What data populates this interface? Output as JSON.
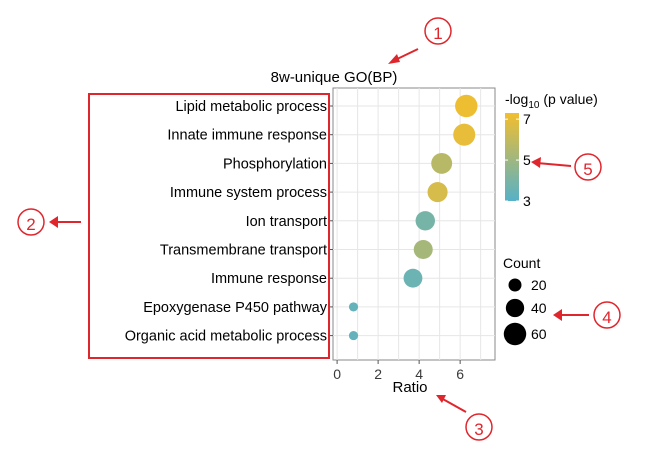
{
  "chart_data": {
    "type": "scatter",
    "title": "8w-unique GO(BP)",
    "xlabel": "Ratio",
    "ylabel": "",
    "xlim": [
      -0.2,
      7.7
    ],
    "xticks": [
      0,
      2,
      4,
      6
    ],
    "grid": true,
    "categories": [
      "Lipid metabolic process",
      "Innate immune response",
      "Phosphorylation",
      "Immune system process",
      "Ion transport",
      "Transmembrane transport",
      "Immune response",
      "Epoxygenase P450 pathway",
      "Organic acid metabolic process"
    ],
    "ratio": [
      6.3,
      6.2,
      5.1,
      4.9,
      4.3,
      4.2,
      3.7,
      0.8,
      0.8
    ],
    "count": [
      60,
      58,
      52,
      48,
      45,
      43,
      42,
      10,
      10
    ],
    "neg_log10_p": [
      7.2,
      7.0,
      5.7,
      6.5,
      3.9,
      5.2,
      3.6,
      3.4,
      3.4
    ],
    "color_legend": {
      "title_prefix": "-log",
      "title_sub": "10",
      "title_suffix": " (p value)",
      "ticks": [
        7,
        5,
        3
      ],
      "range": [
        3,
        7.3
      ],
      "low_color": "#56B1C8",
      "high_color": "#F2BE2E"
    },
    "size_legend": {
      "title": "Count",
      "values": [
        20,
        40,
        60
      ]
    }
  },
  "annotations": {
    "callouts": [
      "①",
      "②",
      "③",
      "④",
      "⑤"
    ],
    "callout_color": "#e0262d"
  }
}
